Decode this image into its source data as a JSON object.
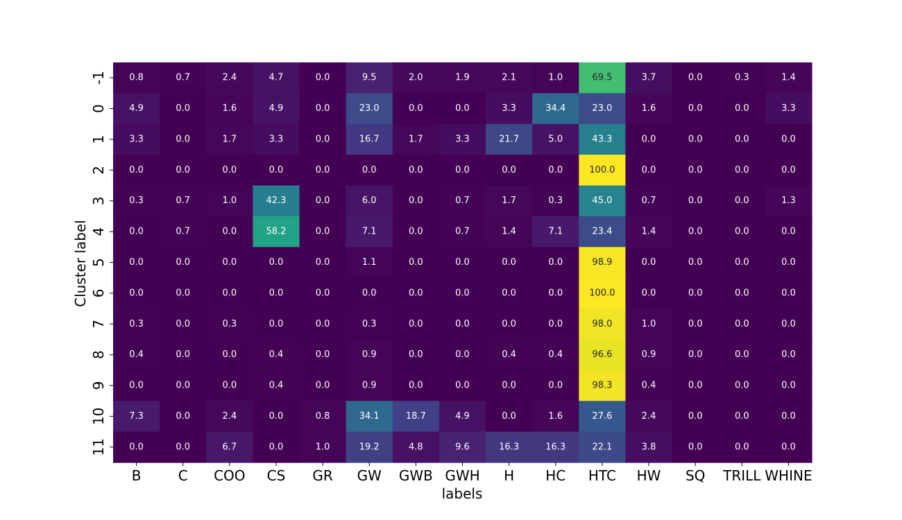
{
  "chart_data": {
    "type": "heatmap",
    "title": "",
    "xlabel": "labels",
    "ylabel": "Cluster label",
    "x_categories": [
      "B",
      "C",
      "COO",
      "CS",
      "GR",
      "GW",
      "GWB",
      "GWH",
      "H",
      "HC",
      "HTC",
      "HW",
      "SQ",
      "TRILL",
      "WHINE"
    ],
    "y_categories": [
      "-1",
      "0",
      "1",
      "2",
      "3",
      "4",
      "5",
      "6",
      "7",
      "8",
      "9",
      "10",
      "11"
    ],
    "value_range": [
      0,
      100
    ],
    "colormap": "viridis",
    "colorbar": false,
    "values": [
      [
        "0.8",
        "0.7",
        "2.4",
        "4.7",
        "0.0",
        "9.5",
        "2.0",
        "1.9",
        "2.1",
        "1.0",
        "69.5",
        "3.7",
        "0.0",
        "0.3",
        "1.4"
      ],
      [
        "4.9",
        "0.0",
        "1.6",
        "4.9",
        "0.0",
        "23.0",
        "0.0",
        "0.0",
        "3.3",
        "34.4",
        "23.0",
        "1.6",
        "0.0",
        "0.0",
        "3.3"
      ],
      [
        "3.3",
        "0.0",
        "1.7",
        "3.3",
        "0.0",
        "16.7",
        "1.7",
        "3.3",
        "21.7",
        "5.0",
        "43.3",
        "0.0",
        "0.0",
        "0.0",
        "0.0"
      ],
      [
        "0.0",
        "0.0",
        "0.0",
        "0.0",
        "0.0",
        "0.0",
        "0.0",
        "0.0",
        "0.0",
        "0.0",
        "100.0",
        "0.0",
        "0.0",
        "0.0",
        "0.0"
      ],
      [
        "0.3",
        "0.7",
        "1.0",
        "42.3",
        "0.0",
        "6.0",
        "0.0",
        "0.7",
        "1.7",
        "0.3",
        "45.0",
        "0.7",
        "0.0",
        "0.0",
        "1.3"
      ],
      [
        "0.0",
        "0.7",
        "0.0",
        "58.2",
        "0.0",
        "7.1",
        "0.0",
        "0.7",
        "1.4",
        "7.1",
        "23.4",
        "1.4",
        "0.0",
        "0.0",
        "0.0"
      ],
      [
        "0.0",
        "0.0",
        "0.0",
        "0.0",
        "0.0",
        "1.1",
        "0.0",
        "0.0",
        "0.0",
        "0.0",
        "98.9",
        "0.0",
        "0.0",
        "0.0",
        "0.0"
      ],
      [
        "0.0",
        "0.0",
        "0.0",
        "0.0",
        "0.0",
        "0.0",
        "0.0",
        "0.0",
        "0.0",
        "0.0",
        "100.0",
        "0.0",
        "0.0",
        "0.0",
        "0.0"
      ],
      [
        "0.3",
        "0.0",
        "0.3",
        "0.0",
        "0.0",
        "0.3",
        "0.0",
        "0.0",
        "0.0",
        "0.0",
        "98.0",
        "1.0",
        "0.0",
        "0.0",
        "0.0"
      ],
      [
        "0.4",
        "0.0",
        "0.0",
        "0.4",
        "0.0",
        "0.9",
        "0.0",
        "0.0",
        "0.4",
        "0.4",
        "96.6",
        "0.9",
        "0.0",
        "0.0",
        "0.0"
      ],
      [
        "0.0",
        "0.0",
        "0.0",
        "0.4",
        "0.0",
        "0.9",
        "0.0",
        "0.0",
        "0.0",
        "0.0",
        "98.3",
        "0.4",
        "0.0",
        "0.0",
        "0.0"
      ],
      [
        "7.3",
        "0.0",
        "2.4",
        "0.0",
        "0.8",
        "34.1",
        "18.7",
        "4.9",
        "0.0",
        "1.6",
        "27.6",
        "2.4",
        "0.0",
        "0.0",
        "0.0"
      ],
      [
        "0.0",
        "0.0",
        "6.7",
        "0.0",
        "1.0",
        "19.2",
        "4.8",
        "9.6",
        "16.3",
        "16.3",
        "22.1",
        "3.8",
        "0.0",
        "0.0",
        "0.0"
      ]
    ]
  }
}
